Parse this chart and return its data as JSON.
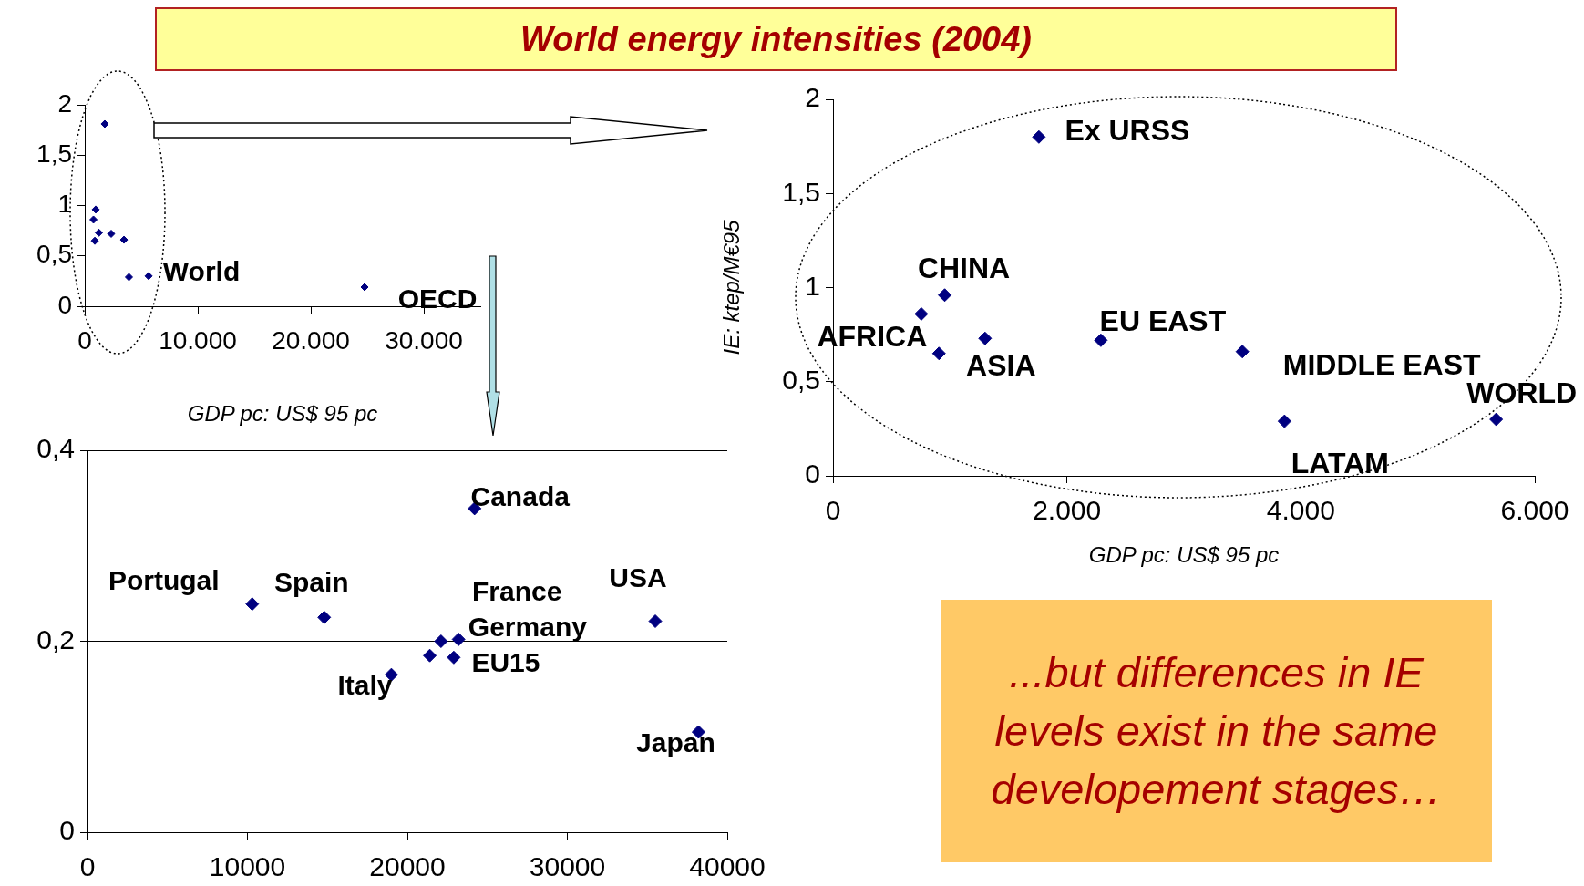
{
  "chart_data": [
    {
      "type": "other",
      "title": "World energy intensities (2004)"
    },
    {
      "type": "scatter",
      "xlabel": "GDP pc: US$ 95 pc",
      "xlim": [
        0,
        35000
      ],
      "ylim": [
        0,
        2
      ],
      "xticks": [
        0,
        {
          "value": 10000,
          "label": "10.000"
        },
        {
          "value": 20000,
          "label": "20.000"
        },
        {
          "value": 30000,
          "label": "30.000"
        }
      ],
      "yticks": [
        0,
        {
          "value": 0.5,
          "label": "0,5"
        },
        1,
        {
          "value": 1.5,
          "label": "1,5"
        },
        2
      ],
      "grid": false,
      "legend": false,
      "marker": "diamond",
      "series": [
        {
          "color": "#000080",
          "x": [
            1770,
            970,
            770,
            1250,
            890,
            2340,
            3470,
            3910,
            5650,
            24760
          ],
          "values": [
            1.81,
            0.96,
            0.86,
            0.73,
            0.65,
            0.72,
            0.66,
            0.29,
            0.3,
            0.19
          ]
        }
      ],
      "annotations": [
        {
          "text": "World",
          "x": 5650,
          "y": 0.3
        },
        {
          "text": "OECD",
          "x": 24760,
          "y": 0.19
        }
      ]
    },
    {
      "type": "scatter",
      "xlabel": "GDP pc: US$ 95 pc",
      "ylabel": "IE: ktep/M€95",
      "xlim": [
        0,
        6000
      ],
      "ylim": [
        0,
        2
      ],
      "xticks": [
        0,
        {
          "value": 2000,
          "label": "2.000"
        },
        {
          "value": 4000,
          "label": "4.000"
        },
        {
          "value": 6000,
          "label": "6.000"
        }
      ],
      "yticks": [
        0,
        {
          "value": 0.5,
          "label": "0,5"
        },
        1,
        {
          "value": 1.5,
          "label": "1,5"
        },
        2
      ],
      "grid": false,
      "legend": false,
      "marker": "diamond",
      "series": [
        {
          "color": "#000080",
          "x": [
            1760,
            955,
            755,
            906,
            1300,
            2290,
            3500,
            3860,
            5670
          ],
          "values": [
            1.8,
            0.96,
            0.86,
            0.65,
            0.73,
            0.72,
            0.66,
            0.29,
            0.3
          ]
        }
      ],
      "annotations": [
        {
          "text": "Ex URSS",
          "x": 1760,
          "y": 1.8
        },
        {
          "text": "CHINA",
          "x": 955,
          "y": 0.96
        },
        {
          "text": "AFRICA",
          "x": 755,
          "y": 0.86
        },
        {
          "text": "ASIA",
          "x": 906,
          "y": 0.65
        },
        {
          "text": "EU EAST",
          "x": 2290,
          "y": 0.72
        },
        {
          "text": "MIDDLE EAST",
          "x": 3500,
          "y": 0.66
        },
        {
          "text": "LATAM",
          "x": 3860,
          "y": 0.29
        },
        {
          "text": "WORLD",
          "x": 5670,
          "y": 0.3
        }
      ]
    },
    {
      "type": "scatter",
      "xlim": [
        0,
        40000
      ],
      "ylim": [
        0,
        0.4
      ],
      "xticks": [
        0,
        10000,
        20000,
        30000,
        40000
      ],
      "yticks": [
        0,
        {
          "value": 0.2,
          "label": "0,2"
        },
        {
          "value": 0.4,
          "label": "0,4"
        }
      ],
      "grid": "y",
      "legend": false,
      "marker": "diamond",
      "series": [
        {
          "color": "#000080",
          "x": [
            10300,
            14800,
            19000,
            21400,
            22100,
            22900,
            23200,
            24200,
            35500,
            38200
          ],
          "values": [
            0.239,
            0.225,
            0.165,
            0.185,
            0.2,
            0.183,
            0.202,
            0.339,
            0.221,
            0.105
          ]
        }
      ],
      "annotations": [
        {
          "text": "Portugal",
          "x": 10300,
          "y": 0.239
        },
        {
          "text": "Spain",
          "x": 14800,
          "y": 0.225
        },
        {
          "text": "Italy",
          "x": 19000,
          "y": 0.165
        },
        {
          "text": "France",
          "x": 23200,
          "y": 0.202
        },
        {
          "text": "Germany",
          "x": 22100,
          "y": 0.2
        },
        {
          "text": "EU15",
          "x": 22900,
          "y": 0.183
        },
        {
          "text": "Canada",
          "x": 24200,
          "y": 0.339
        },
        {
          "text": "USA",
          "x": 35500,
          "y": 0.221
        },
        {
          "text": "Japan",
          "x": 38200,
          "y": 0.105
        }
      ]
    },
    {
      "type": "other",
      "annotations": [
        "...but differences in IE levels exist in the same developement stages…"
      ]
    }
  ]
}
